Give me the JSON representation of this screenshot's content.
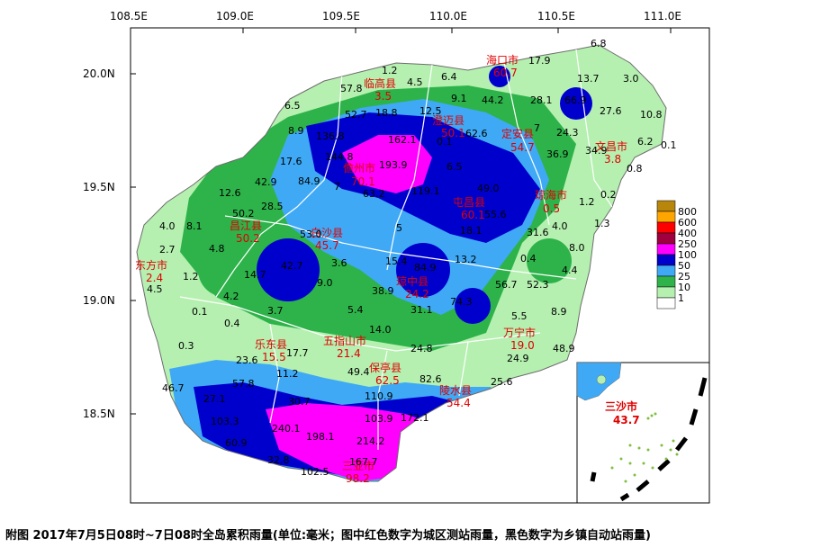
{
  "map": {
    "lon_labels": [
      "108.5E",
      "109.0E",
      "109.5E",
      "110.0E",
      "110.5E",
      "111.0E"
    ],
    "lat_labels": [
      "20.0N",
      "19.5N",
      "19.0N",
      "18.5N"
    ],
    "legend": [
      "800",
      "600",
      "400",
      "250",
      "100",
      "50",
      "25",
      "10",
      "1"
    ],
    "legend_colors": [
      "#b8860b",
      "#ffa500",
      "#ff0000",
      "#a00040",
      "#ff00ff",
      "#0000cd",
      "#3fa9f5",
      "#2db34a",
      "#b5f0b0",
      "#ffffff"
    ],
    "cities": [
      {
        "name": "海口市",
        "value": "60.7"
      },
      {
        "name": "临高县",
        "value": "3.5"
      },
      {
        "name": "澄迈县",
        "value": "50.1"
      },
      {
        "name": "定安县",
        "value": "54.7"
      },
      {
        "name": "文昌市",
        "value": "3.8"
      },
      {
        "name": "儋州市",
        "value": "70.1"
      },
      {
        "name": "屯昌县",
        "value": "60.1"
      },
      {
        "name": "琼海市",
        "value": "0.5"
      },
      {
        "name": "昌江县",
        "value": "50.2"
      },
      {
        "name": "白沙县",
        "value": "45.7"
      },
      {
        "name": "东方市",
        "value": "2.4"
      },
      {
        "name": "琼中县",
        "value": "24.2"
      },
      {
        "name": "五指山市",
        "value": "21.4"
      },
      {
        "name": "乐东县",
        "value": "15.5"
      },
      {
        "name": "万宁市",
        "value": "19.0"
      },
      {
        "name": "保亭县",
        "value": "62.5"
      },
      {
        "name": "陵水县",
        "value": "54.4"
      },
      {
        "name": "三亚市",
        "value": "98.2"
      },
      {
        "name": "三沙市",
        "value": "43.7"
      }
    ],
    "towns": [
      "1.2",
      "4.5",
      "6.4",
      "17.9",
      "6.8",
      "57.8",
      "13.7",
      "3.0",
      "6.5",
      "52.7",
      "18.8",
      "12.5",
      "9.1",
      "44.2",
      "28.1",
      "66.9",
      "27.6",
      "10.8",
      "8.9",
      "136.8",
      "162.1",
      "0.1",
      "62.6",
      "7",
      "24.3",
      "34.9",
      "6.2",
      "0.1",
      "17.6",
      "144.8",
      "193.9",
      "6.5",
      "36.9",
      "0.8",
      "42.9",
      "84.9",
      "7",
      "119.1",
      "49.0",
      "0.2",
      "12.6",
      "63.2",
      "55.6",
      "1.2",
      "50.2",
      "28.5",
      "53.0",
      "5",
      "18.1",
      "31.6",
      "4.0",
      "1.3",
      "4.0",
      "8.1",
      "2.7",
      "4.8",
      "15.4",
      "13.2",
      "0.4",
      "8.0",
      "42.7",
      "3.6",
      "84.9",
      "56.7",
      "52.3",
      "4.4",
      "1.2",
      "14.7",
      "9.0",
      "38.9",
      "74.3",
      "4.5",
      "4.2",
      "5.4",
      "31.1",
      "0.1",
      "0.4",
      "3.7",
      "14.0",
      "5.5",
      "8.9",
      "0.3",
      "17.7",
      "24.8",
      "48.9",
      "23.6",
      "11.2",
      "49.4",
      "82.6",
      "24.9",
      "46.7",
      "57.8",
      "25.6",
      "27.1",
      "30.7",
      "110.9",
      "103.3",
      "172.1",
      "103.9",
      "240.1",
      "198.1",
      "214.2",
      "60.9",
      "32.8",
      "167.7",
      "102.5"
    ]
  },
  "caption": "附图  2017年7月5日08时~7日08时全岛累积雨量(单位:毫米；图中红色数字为城区测站雨量，黑色数字为乡镇自动站雨量)"
}
